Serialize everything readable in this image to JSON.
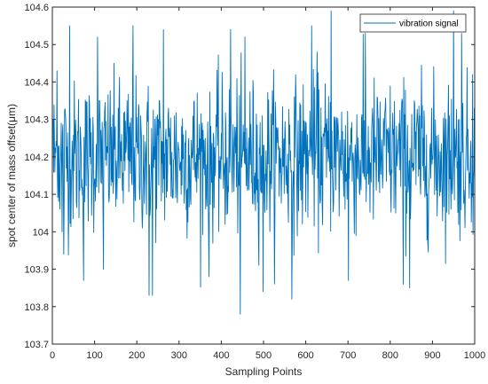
{
  "chart_data": {
    "type": "line",
    "title": "",
    "xlabel": "Sampling Points",
    "ylabel": "spot center of mass offset(μm)",
    "xlim": [
      0,
      1000
    ],
    "ylim": [
      103.7,
      104.6
    ],
    "xticks": [
      "0",
      "100",
      "200",
      "300",
      "400",
      "500",
      "600",
      "700",
      "800",
      "900",
      "1000"
    ],
    "yticks": [
      "103.7",
      "103.8",
      "103.9",
      "104",
      "104.1",
      "104.2",
      "104.3",
      "104.4",
      "104.5",
      "104.6"
    ],
    "grid": false,
    "legend_position": "top-right",
    "series": [
      {
        "name": "vibration signal",
        "color": "#0072BD",
        "sample_count": 1000,
        "mean": 104.2,
        "x": [
          0,
          10,
          22,
          26,
          40,
          73,
          106,
          120,
          190,
          228,
          236,
          262,
          370,
          421,
          444,
          455,
          498,
          566,
          613,
          626,
          659,
          700,
          740,
          830,
          845,
          949,
          968,
          994
        ],
        "values": [
          104.3,
          104.43,
          104.0,
          103.94,
          104.55,
          103.87,
          104.52,
          103.9,
          104.55,
          103.83,
          103.83,
          104.54,
          103.88,
          104.54,
          103.78,
          104.52,
          103.84,
          103.82,
          104.55,
          104.48,
          104.59,
          103.87,
          104.53,
          103.86,
          103.85,
          104.59,
          104.53,
          104.42
        ]
      }
    ]
  }
}
